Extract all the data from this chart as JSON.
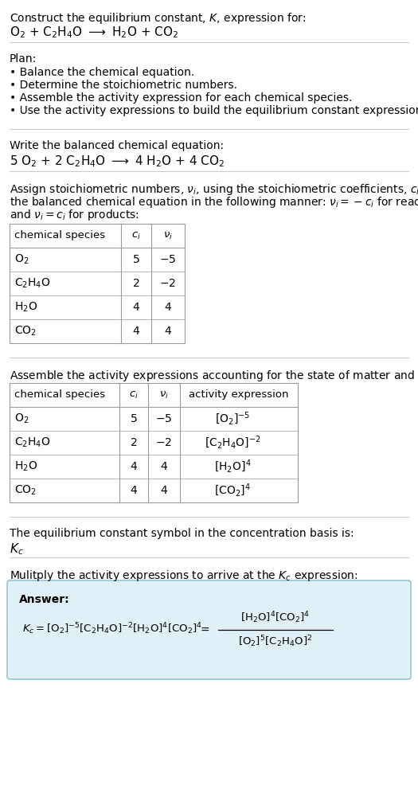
{
  "bg_color": "#ffffff",
  "text_color": "#000000",
  "table_border_color": "#aaaaaa",
  "separator_color": "#bbbbbb",
  "answer_box_color": "#dff0f7",
  "answer_box_border": "#88bbcc",
  "sections": {
    "title": "Construct the equilibrium constant, $K$, expression for:",
    "reaction_unbalanced": "O$_2$ + C$_2$H$_4$O $\\longrightarrow$ H$_2$O + CO$_2$",
    "plan_header": "Plan:",
    "plan_items": [
      "Balance the chemical equation.",
      "Determine the stoichiometric numbers.",
      "Assemble the activity expression for each chemical species.",
      "Use the activity expressions to build the equilibrium constant expression."
    ],
    "balanced_header": "Write the balanced chemical equation:",
    "reaction_balanced": "5 O$_2$ + 2 C$_2$H$_4$O $\\longrightarrow$ 4 H$_2$O + 4 CO$_2$",
    "stoich_lines": [
      "Assign stoichiometric numbers, $\\nu_i$, using the stoichiometric coefficients, $c_i$, from",
      "the balanced chemical equation in the following manner: $\\nu_i = -c_i$ for reactants",
      "and $\\nu_i = c_i$ for products:"
    ],
    "table1_headers": [
      "chemical species",
      "$c_i$",
      "$\\nu_i$"
    ],
    "table1_rows": [
      [
        "O$_2$",
        "5",
        "$-5$"
      ],
      [
        "C$_2$H$_4$O",
        "2",
        "$-2$"
      ],
      [
        "H$_2$O",
        "4",
        "4"
      ],
      [
        "CO$_2$",
        "4",
        "4"
      ]
    ],
    "activity_header": "Assemble the activity expressions accounting for the state of matter and $\\nu_i$:",
    "table2_headers": [
      "chemical species",
      "$c_i$",
      "$\\nu_i$",
      "activity expression"
    ],
    "table2_rows": [
      [
        "O$_2$",
        "5",
        "$-5$",
        "$[\\mathrm{O_2}]^{-5}$"
      ],
      [
        "C$_2$H$_4$O",
        "2",
        "$-2$",
        "$[\\mathrm{C_2H_4O}]^{-2}$"
      ],
      [
        "H$_2$O",
        "4",
        "4",
        "$[\\mathrm{H_2O}]^{4}$"
      ],
      [
        "CO$_2$",
        "4",
        "4",
        "$[\\mathrm{CO_2}]^{4}$"
      ]
    ],
    "kc_text": "The equilibrium constant symbol in the concentration basis is:",
    "kc_symbol": "$K_c$",
    "multiply_text": "Mulitply the activity expressions to arrive at the $K_c$ expression:",
    "answer_label": "Answer:",
    "kc_eq": "$K_c = [\\mathrm{O_2}]^{-5} [\\mathrm{C_2H_4O}]^{-2} [\\mathrm{H_2O}]^{4} [\\mathrm{CO_2}]^{4}$",
    "kc_eq_equals": "$=$",
    "frac_num": "$[\\mathrm{H_2O}]^{4} [\\mathrm{CO_2}]^{4}$",
    "frac_den": "$[\\mathrm{O_2}]^{5} [\\mathrm{C_2H_4O}]^{2}$"
  }
}
